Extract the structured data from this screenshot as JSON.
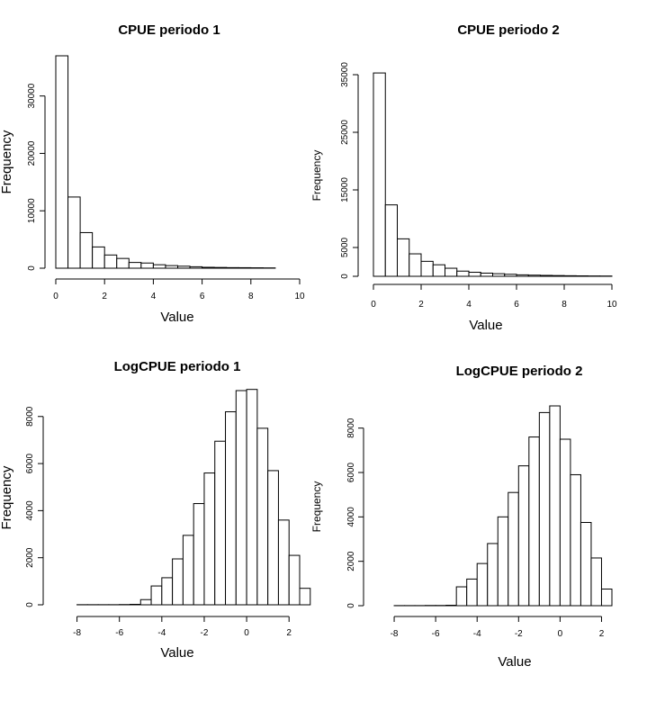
{
  "chart_data": [
    {
      "type": "bar",
      "title": "CPUE periodo 1",
      "xlabel": "Value",
      "ylabel": "Frequency",
      "xlim": [
        0,
        10
      ],
      "ylim": [
        0,
        37000
      ],
      "xticks": [
        0,
        2,
        4,
        6,
        8,
        10
      ],
      "xtick_labels": [
        "0",
        "2",
        "4",
        "6",
        "8",
        "10"
      ],
      "yticks": [
        0,
        10000,
        20000,
        30000
      ],
      "ytick_labels": [
        "0",
        "10000",
        "20000",
        "30000"
      ],
      "bin_width": 0.5,
      "bin_start": 0,
      "values": [
        37000,
        12400,
        6200,
        3700,
        2300,
        1700,
        1000,
        900,
        600,
        450,
        350,
        250,
        160,
        130,
        100,
        90,
        70,
        50
      ]
    },
    {
      "type": "bar",
      "title": "CPUE periodo 2",
      "xlabel": "Value",
      "ylabel": "Frequency",
      "xlim": [
        0,
        10
      ],
      "ylim": [
        0,
        35000
      ],
      "xticks": [
        0,
        2,
        4,
        6,
        8,
        10
      ],
      "xtick_labels": [
        "0",
        "2",
        "4",
        "6",
        "8",
        "10"
      ],
      "yticks": [
        0,
        5000,
        15000,
        25000,
        35000
      ],
      "ytick_labels": [
        "0",
        "5000",
        "15000",
        "25000",
        "35000"
      ],
      "bin_width": 0.5,
      "bin_start": 0,
      "values": [
        35300,
        12400,
        6500,
        3900,
        2600,
        2000,
        1400,
        900,
        700,
        550,
        450,
        350,
        250,
        200,
        160,
        130,
        100,
        80,
        60,
        50
      ]
    },
    {
      "type": "bar",
      "title": "LogCPUE periodo 1",
      "xlabel": "Value",
      "ylabel": "Frequency",
      "xlim": [
        -9,
        2.5
      ],
      "ylim": [
        0,
        9100
      ],
      "xticks": [
        -8,
        -6,
        -4,
        -2,
        0,
        2
      ],
      "xtick_labels": [
        "-8",
        "-6",
        "-4",
        "-2",
        "0",
        "2"
      ],
      "yticks": [
        0,
        2000,
        4000,
        6000,
        8000
      ],
      "ytick_labels": [
        "0",
        "2000",
        "4000",
        "6000",
        "8000"
      ],
      "bin_width": 0.5,
      "bin_start": -9,
      "values": [
        0,
        0,
        5,
        5,
        5,
        5,
        10,
        20,
        220,
        800,
        1150,
        1950,
        2950,
        4300,
        5600,
        6950,
        8200,
        9100,
        9150,
        7500,
        5700,
        3600,
        2100,
        700
      ]
    },
    {
      "type": "bar",
      "title": "LogCPUE periodo 2",
      "xlabel": "Value",
      "ylabel": "Frequency",
      "xlim": [
        -9,
        2.5
      ],
      "ylim": [
        0,
        9000
      ],
      "xticks": [
        -8,
        -6,
        -4,
        -2,
        0,
        2
      ],
      "xtick_labels": [
        "-8",
        "-6",
        "-4",
        "-2",
        "0",
        "2"
      ],
      "yticks": [
        0,
        2000,
        4000,
        6000,
        8000
      ],
      "ytick_labels": [
        "0",
        "2000",
        "4000",
        "6000",
        "8000"
      ],
      "bin_width": 0.5,
      "bin_start": -9,
      "values": [
        0,
        0,
        5,
        5,
        5,
        10,
        10,
        20,
        850,
        1200,
        1900,
        2800,
        4000,
        5100,
        6300,
        7600,
        8700,
        9000,
        7500,
        5900,
        3750,
        2150,
        750
      ]
    }
  ]
}
